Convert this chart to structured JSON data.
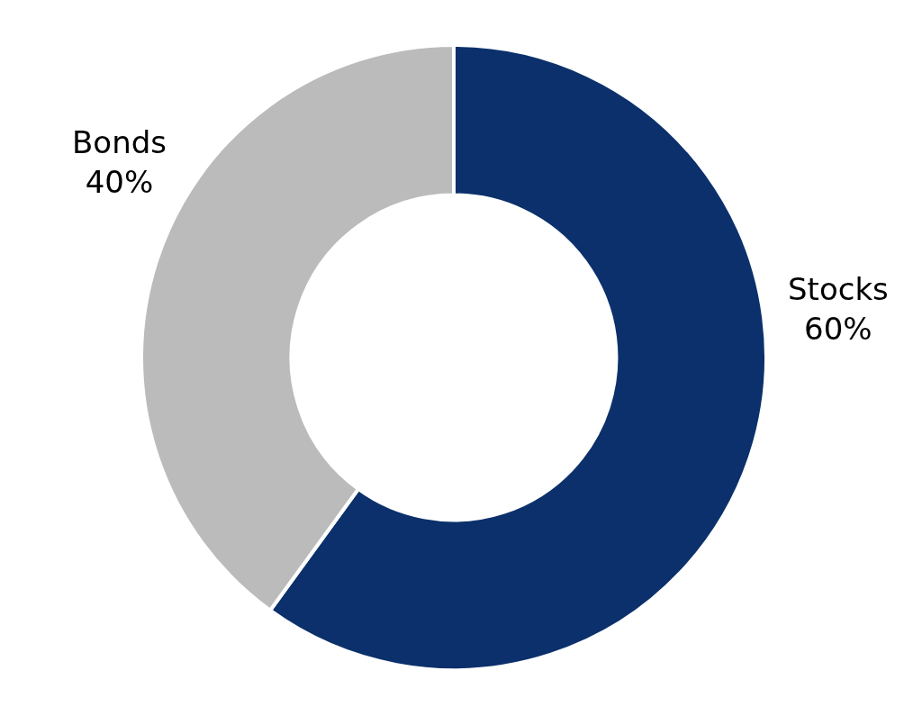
{
  "chart_data": {
    "type": "donut",
    "categories": [
      "Stocks",
      "Bonds"
    ],
    "values": [
      60,
      40
    ],
    "colors": [
      "#0b306b",
      "#bbbbbb"
    ],
    "value_labels": [
      "60%",
      "40%"
    ],
    "legend": false
  }
}
